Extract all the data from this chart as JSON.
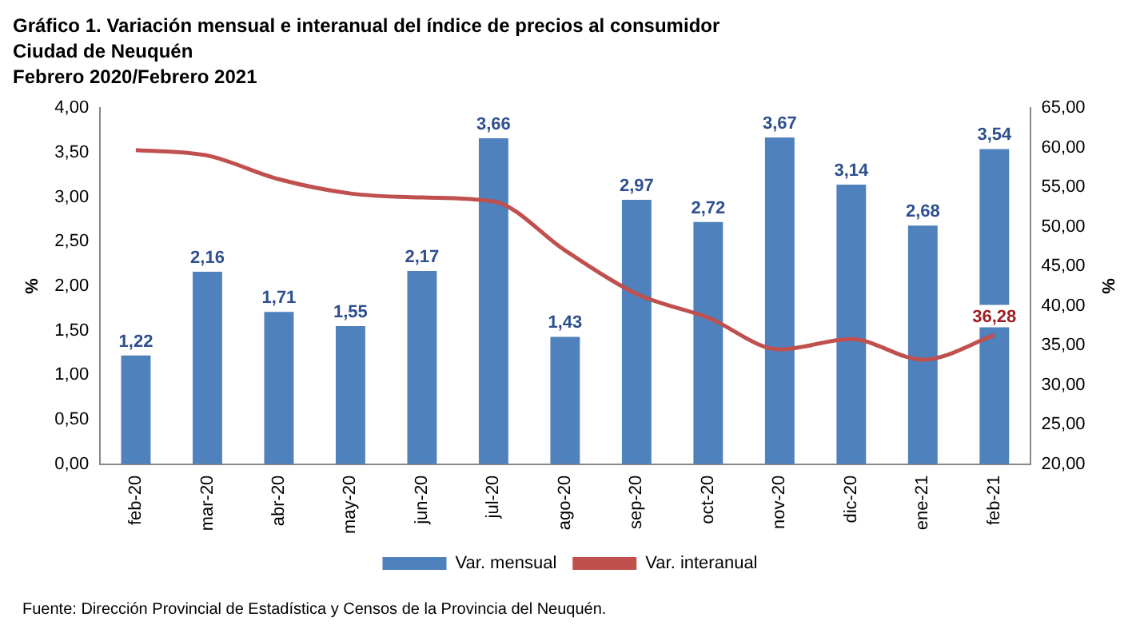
{
  "chart_data": {
    "type": "bar",
    "title": "Gráfico 1. Variación mensual e interanual del índice de precios al consumidor",
    "subtitle": "Ciudad de Neuquén\nFebrero 2020/Febrero 2021",
    "ylabel": "%",
    "y2label": "%",
    "categories": [
      "feb-20",
      "mar-20",
      "abr-20",
      "may-20",
      "jun-20",
      "jul-20",
      "ago-20",
      "sep-20",
      "oct-20",
      "nov-20",
      "dic-20",
      "ene-21",
      "feb-21"
    ],
    "series": [
      {
        "name": "Var. mensual",
        "color": "#4f81bd",
        "values": [
          1.22,
          2.16,
          1.71,
          1.55,
          2.17,
          3.66,
          1.43,
          2.97,
          2.72,
          3.67,
          3.14,
          2.68,
          3.54
        ],
        "value_labels": [
          "1,22",
          "2,16",
          "1,71",
          "1,55",
          "2,17",
          "3,66",
          "1,43",
          "2,97",
          "2,72",
          "3,67",
          "3,14",
          "2,68",
          "3,54"
        ]
      },
      {
        "name": "Var. interanual",
        "type": "line",
        "axis": "y2",
        "color": "#c0504d",
        "values": [
          59.7,
          59.0,
          56.0,
          54.2,
          53.7,
          53.2,
          47.0,
          41.5,
          38.5,
          34.5,
          35.8,
          33.2,
          36.28
        ],
        "value_labels": [
          null,
          null,
          null,
          null,
          null,
          null,
          null,
          null,
          null,
          null,
          null,
          null,
          "36,28"
        ]
      }
    ],
    "ylim": [
      0,
      4
    ],
    "yticks": [
      {
        "value": 0,
        "label": "0,00"
      },
      {
        "value": 0.5,
        "label": "0,50"
      },
      {
        "value": 1,
        "label": "1,00"
      },
      {
        "value": 1.5,
        "label": "1,50"
      },
      {
        "value": 2,
        "label": "2,00"
      },
      {
        "value": 2.5,
        "label": "2,50"
      },
      {
        "value": 3,
        "label": "3,00"
      },
      {
        "value": 3.5,
        "label": "3,50"
      },
      {
        "value": 4,
        "label": "4,00"
      }
    ],
    "y2lim": [
      20,
      65
    ],
    "y2ticks": [
      {
        "value": 20,
        "label": "20,00"
      },
      {
        "value": 25,
        "label": "25,00"
      },
      {
        "value": 30,
        "label": "30,00"
      },
      {
        "value": 35,
        "label": "35,00"
      },
      {
        "value": 40,
        "label": "40,00"
      },
      {
        "value": 45,
        "label": "45,00"
      },
      {
        "value": 50,
        "label": "50,00"
      },
      {
        "value": 55,
        "label": "55,00"
      },
      {
        "value": 60,
        "label": "60,00"
      },
      {
        "value": 65,
        "label": "65,00"
      }
    ],
    "legend": "bottom",
    "grid": false,
    "marker": "none",
    "annotations": [
      "Fuente: Dirección Provincial de Estadística y Censos de la Provincia del Neuquén."
    ]
  }
}
